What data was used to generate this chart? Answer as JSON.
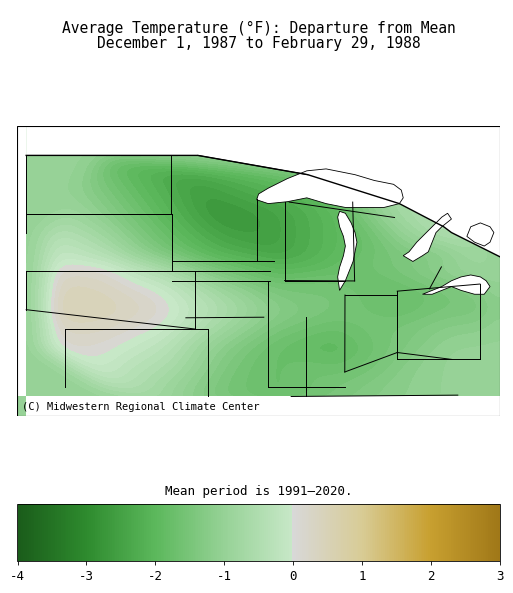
{
  "title_line1": "Average Temperature (°F): Departure from Mean",
  "title_line2": "December 1, 1987 to February 29, 1988",
  "footnote": "Mean period is 1991–2020.",
  "copyright": "(C) Midwestern Regional Climate Center",
  "colorbar_ticks": [
    -4,
    -3,
    -2,
    -1,
    0,
    1,
    2,
    3
  ],
  "vmin": -4,
  "vmax": 3,
  "fig_bg": "#ffffff",
  "title_fontsize": 10.5,
  "footnote_fontsize": 9,
  "copyright_fontsize": 7.5,
  "cmap_stops": [
    [
      0.0,
      "#1a5c1a"
    ],
    [
      0.143,
      "#2e8b2e"
    ],
    [
      0.286,
      "#5cb85c"
    ],
    [
      0.4286,
      "#96d296"
    ],
    [
      0.5714,
      "#c8e8c8"
    ],
    [
      0.5715,
      "#d8d8d8"
    ],
    [
      0.714,
      "#d8cc96"
    ],
    [
      0.857,
      "#c8a030"
    ],
    [
      1.0,
      "#a07818"
    ]
  ],
  "temp_control_points": [
    {
      "lon": -100,
      "lat": 49,
      "val": -1.8
    },
    {
      "lon": -96,
      "lat": 48,
      "val": -2.5
    },
    {
      "lon": -92,
      "lat": 48,
      "val": -2.0
    },
    {
      "lon": -88,
      "lat": 48,
      "val": -1.5
    },
    {
      "lon": -84,
      "lat": 48,
      "val": -0.5
    },
    {
      "lon": -82,
      "lat": 47,
      "val": -0.3
    },
    {
      "lon": -100,
      "lat": 46,
      "val": -1.2
    },
    {
      "lon": -97,
      "lat": 46,
      "val": -2.0
    },
    {
      "lon": -94,
      "lat": 46,
      "val": -2.8
    },
    {
      "lon": -91,
      "lat": 46,
      "val": -2.5
    },
    {
      "lon": -88,
      "lat": 46,
      "val": -2.0
    },
    {
      "lon": -85,
      "lat": 46,
      "val": -0.8
    },
    {
      "lon": -82,
      "lat": 45,
      "val": -0.4
    },
    {
      "lon": -103,
      "lat": 45,
      "val": -0.3
    },
    {
      "lon": -100,
      "lat": 44,
      "val": -0.5
    },
    {
      "lon": -97,
      "lat": 44,
      "val": -1.5
    },
    {
      "lon": -94,
      "lat": 44,
      "val": -2.2
    },
    {
      "lon": -91,
      "lat": 44,
      "val": -2.5
    },
    {
      "lon": -88,
      "lat": 44,
      "val": -2.0
    },
    {
      "lon": -85,
      "lat": 44,
      "val": -1.5
    },
    {
      "lon": -82,
      "lat": 44,
      "val": -1.2
    },
    {
      "lon": -103,
      "lat": 43,
      "val": 0.3
    },
    {
      "lon": -100,
      "lat": 43,
      "val": 0.2
    },
    {
      "lon": -97,
      "lat": 43,
      "val": -0.5
    },
    {
      "lon": -94,
      "lat": 43,
      "val": -1.5
    },
    {
      "lon": -91,
      "lat": 43,
      "val": -2.0
    },
    {
      "lon": -88,
      "lat": 43,
      "val": -1.8
    },
    {
      "lon": -85,
      "lat": 43,
      "val": -1.5
    },
    {
      "lon": -82,
      "lat": 43,
      "val": -1.0
    },
    {
      "lon": -80,
      "lat": 43,
      "val": -0.8
    },
    {
      "lon": -103,
      "lat": 42,
      "val": 0.5
    },
    {
      "lon": -100,
      "lat": 42,
      "val": 0.4
    },
    {
      "lon": -97,
      "lat": 42,
      "val": 0.0
    },
    {
      "lon": -94,
      "lat": 42,
      "val": -0.8
    },
    {
      "lon": -91,
      "lat": 42,
      "val": -1.5
    },
    {
      "lon": -88,
      "lat": 42,
      "val": -1.5
    },
    {
      "lon": -85,
      "lat": 42,
      "val": -1.8
    },
    {
      "lon": -82,
      "lat": 42,
      "val": -1.5
    },
    {
      "lon": -80,
      "lat": 42,
      "val": -1.2
    },
    {
      "lon": -103,
      "lat": 41,
      "val": 0.6
    },
    {
      "lon": -100,
      "lat": 41,
      "val": 0.5
    },
    {
      "lon": -97,
      "lat": 41,
      "val": 0.2
    },
    {
      "lon": -94,
      "lat": 41,
      "val": -0.5
    },
    {
      "lon": -91,
      "lat": 41,
      "val": -1.2
    },
    {
      "lon": -88,
      "lat": 41,
      "val": -1.5
    },
    {
      "lon": -85,
      "lat": 41,
      "val": -1.8
    },
    {
      "lon": -82,
      "lat": 41,
      "val": -1.5
    },
    {
      "lon": -80,
      "lat": 41,
      "val": -1.5
    },
    {
      "lon": -103,
      "lat": 40,
      "val": 0.3
    },
    {
      "lon": -100,
      "lat": 40,
      "val": 0.3
    },
    {
      "lon": -97,
      "lat": 40,
      "val": 0.0
    },
    {
      "lon": -94,
      "lat": 40,
      "val": -0.8
    },
    {
      "lon": -91,
      "lat": 40,
      "val": -1.5
    },
    {
      "lon": -88,
      "lat": 40,
      "val": -1.8
    },
    {
      "lon": -85,
      "lat": 40,
      "val": -1.5
    },
    {
      "lon": -82,
      "lat": 40,
      "val": -1.2
    },
    {
      "lon": -80,
      "lat": 40,
      "val": -1.2
    },
    {
      "lon": -103,
      "lat": 39,
      "val": 0.2
    },
    {
      "lon": -100,
      "lat": 39,
      "val": 0.1
    },
    {
      "lon": -97,
      "lat": 39,
      "val": -0.3
    },
    {
      "lon": -94,
      "lat": 39,
      "val": -1.2
    },
    {
      "lon": -91,
      "lat": 39,
      "val": -1.8
    },
    {
      "lon": -88,
      "lat": 39,
      "val": -2.0
    },
    {
      "lon": -85,
      "lat": 39,
      "val": -1.5
    },
    {
      "lon": -82,
      "lat": 39,
      "val": -1.0
    },
    {
      "lon": -80,
      "lat": 39,
      "val": -1.0
    },
    {
      "lon": -100,
      "lat": 37,
      "val": -0.2
    },
    {
      "lon": -97,
      "lat": 37,
      "val": -0.8
    },
    {
      "lon": -94,
      "lat": 37,
      "val": -1.5
    },
    {
      "lon": -91,
      "lat": 37,
      "val": -1.8
    },
    {
      "lon": -88,
      "lat": 37,
      "val": -1.5
    },
    {
      "lon": -85,
      "lat": 37,
      "val": -1.2
    },
    {
      "lon": -82,
      "lat": 37,
      "val": -1.0
    },
    {
      "lon": -80,
      "lat": 37,
      "val": -0.8
    },
    {
      "lon": -97,
      "lat": 36,
      "val": -0.8
    },
    {
      "lon": -94,
      "lat": 36,
      "val": -1.5
    },
    {
      "lon": -91,
      "lat": 36,
      "val": -1.8
    },
    {
      "lon": -88,
      "lat": 36,
      "val": -1.5
    },
    {
      "lon": -85,
      "lat": 36,
      "val": -1.2
    },
    {
      "lon": -82,
      "lat": 36,
      "val": -1.0
    }
  ]
}
